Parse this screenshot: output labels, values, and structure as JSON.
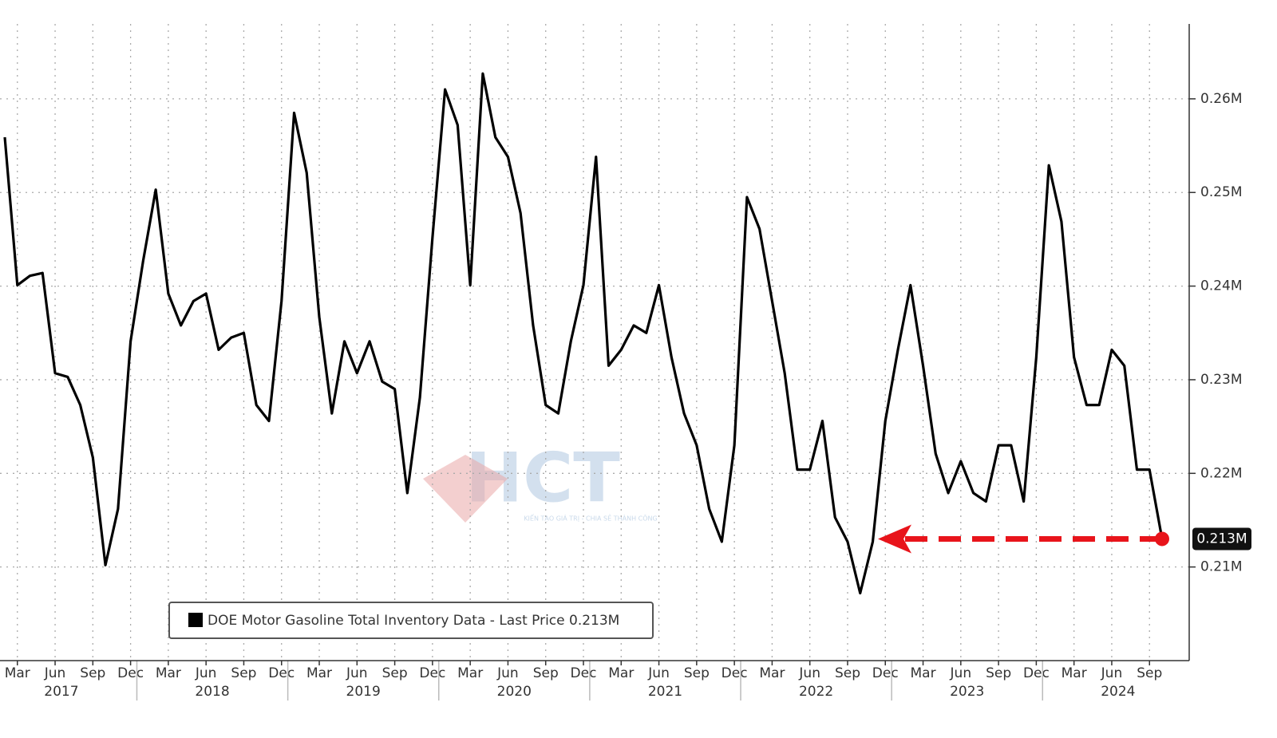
{
  "chart_data": {
    "type": "line",
    "watermark": "HCT",
    "watermark_tagline": "KIẾN TẠO GIÁ TRỊ - CHIA SẺ THÀNH CÔNG",
    "x": [
      "2017-02",
      "2017-03",
      "2017-04",
      "2017-05",
      "2017-06",
      "2017-07",
      "2017-08",
      "2017-09",
      "2017-10",
      "2017-11",
      "2017-12",
      "2018-01",
      "2018-02",
      "2018-03",
      "2018-04",
      "2018-05",
      "2018-06",
      "2018-07",
      "2018-08",
      "2018-09",
      "2018-10",
      "2018-11",
      "2018-12",
      "2019-01",
      "2019-02",
      "2019-03",
      "2019-04",
      "2019-05",
      "2019-06",
      "2019-07",
      "2019-08",
      "2019-09",
      "2019-10",
      "2019-11",
      "2019-12",
      "2020-01",
      "2020-02",
      "2020-03",
      "2020-04",
      "2020-05",
      "2020-06",
      "2020-07",
      "2020-08",
      "2020-09",
      "2020-10",
      "2020-11",
      "2020-12",
      "2021-01",
      "2021-02",
      "2021-03",
      "2021-04",
      "2021-05",
      "2021-06",
      "2021-07",
      "2021-08",
      "2021-09",
      "2021-10",
      "2021-11",
      "2021-12",
      "2022-01",
      "2022-02",
      "2022-03",
      "2022-04",
      "2022-05",
      "2022-06",
      "2022-07",
      "2022-08",
      "2022-09",
      "2022-10",
      "2022-11",
      "2022-12",
      "2023-01",
      "2023-02",
      "2023-03",
      "2023-04",
      "2023-05",
      "2023-06",
      "2023-07",
      "2023-08",
      "2023-09",
      "2023-10",
      "2023-11",
      "2023-12",
      "2024-01",
      "2024-02",
      "2024-03",
      "2024-04",
      "2024-05",
      "2024-06",
      "2024-07",
      "2024-08",
      "2024-09",
      "2024-10"
    ],
    "series": [
      {
        "name": "DOE Motor Gasoline Total Inventory Data - Last Price 0.213M",
        "color": "#000000",
        "values": [
          0.2559,
          0.2401,
          0.2411,
          0.2414,
          0.2307,
          0.2303,
          0.2273,
          0.2217,
          0.2102,
          0.2162,
          0.2341,
          0.2427,
          0.2503,
          0.2392,
          0.2358,
          0.2384,
          0.2392,
          0.2332,
          0.2345,
          0.235,
          0.2273,
          0.2256,
          0.2384,
          0.2585,
          0.2521,
          0.2367,
          0.2264,
          0.2341,
          0.2307,
          0.2341,
          0.2298,
          0.229,
          0.2179,
          0.2281,
          0.2452,
          0.261,
          0.2572,
          0.2401,
          0.2627,
          0.2559,
          0.2538,
          0.2478,
          0.2358,
          0.2273,
          0.2264,
          0.2341,
          0.2401,
          0.2538,
          0.2315,
          0.2332,
          0.2358,
          0.235,
          0.2401,
          0.2324,
          0.2264,
          0.223,
          0.2162,
          0.2127,
          0.223,
          0.2495,
          0.2461,
          0.2384,
          0.2307,
          0.2204,
          0.2204,
          0.2256,
          0.2153,
          0.2127,
          0.2072,
          0.2127,
          0.2256,
          0.2332,
          0.2401,
          0.2315,
          0.2221,
          0.2179,
          0.2213,
          0.2179,
          0.217,
          0.223,
          0.223,
          0.217,
          0.2324,
          0.2529,
          0.2469,
          0.2324,
          0.2273,
          0.2273,
          0.2332,
          0.2315,
          0.2204,
          0.2204,
          0.213
        ]
      }
    ],
    "last_value_label": "0.213M",
    "xlim": [
      "2017-02",
      "2024-10"
    ],
    "xticks": [
      {
        "value": "2017-03",
        "label": "Mar"
      },
      {
        "value": "2017-06",
        "label": "Jun"
      },
      {
        "value": "2017-09",
        "label": "Sep"
      },
      {
        "value": "2017-12",
        "label": "Dec"
      },
      {
        "value": "2018-03",
        "label": "Mar"
      },
      {
        "value": "2018-06",
        "label": "Jun"
      },
      {
        "value": "2018-09",
        "label": "Sep"
      },
      {
        "value": "2018-12",
        "label": "Dec"
      },
      {
        "value": "2019-03",
        "label": "Mar"
      },
      {
        "value": "2019-06",
        "label": "Jun"
      },
      {
        "value": "2019-09",
        "label": "Sep"
      },
      {
        "value": "2019-12",
        "label": "Dec"
      },
      {
        "value": "2020-03",
        "label": "Mar"
      },
      {
        "value": "2020-06",
        "label": "Jun"
      },
      {
        "value": "2020-09",
        "label": "Sep"
      },
      {
        "value": "2020-12",
        "label": "Dec"
      },
      {
        "value": "2021-03",
        "label": "Mar"
      },
      {
        "value": "2021-06",
        "label": "Jun"
      },
      {
        "value": "2021-09",
        "label": "Sep"
      },
      {
        "value": "2021-12",
        "label": "Dec"
      },
      {
        "value": "2022-03",
        "label": "Mar"
      },
      {
        "value": "2022-06",
        "label": "Jun"
      },
      {
        "value": "2022-09",
        "label": "Sep"
      },
      {
        "value": "2022-12",
        "label": "Dec"
      },
      {
        "value": "2023-03",
        "label": "Mar"
      },
      {
        "value": "2023-06",
        "label": "Jun"
      },
      {
        "value": "2023-09",
        "label": "Sep"
      },
      {
        "value": "2023-12",
        "label": "Dec"
      },
      {
        "value": "2024-03",
        "label": "Mar"
      },
      {
        "value": "2024-06",
        "label": "Jun"
      },
      {
        "value": "2024-09",
        "label": "Sep"
      }
    ],
    "year_labels": [
      "2017",
      "2018",
      "2019",
      "2020",
      "2021",
      "2022",
      "2023",
      "2024"
    ],
    "ylim": [
      0.2,
      0.268
    ],
    "yticks": [
      {
        "value": 0.21,
        "label": "0.21M"
      },
      {
        "value": 0.22,
        "label": "0.22M"
      },
      {
        "value": 0.23,
        "label": "0.23M"
      },
      {
        "value": 0.24,
        "label": "0.24M"
      },
      {
        "value": 0.25,
        "label": "0.25M"
      },
      {
        "value": 0.26,
        "label": "0.26M"
      }
    ],
    "grid": true,
    "annotation_color": "#e8141b"
  }
}
